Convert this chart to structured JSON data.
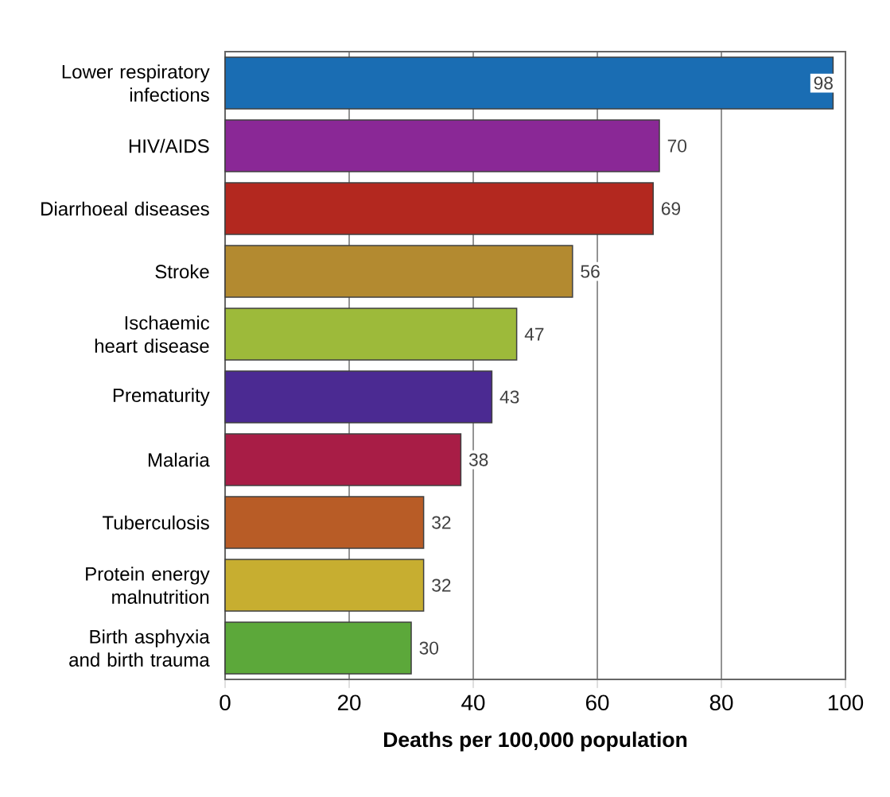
{
  "chart_data": {
    "type": "bar",
    "orientation": "horizontal",
    "categories": [
      "Lower respiratory infections",
      "HIV/AIDS",
      "Diarrhoeal diseases",
      "Stroke",
      "Ischaemic heart disease",
      "Prematurity",
      "Malaria",
      "Tuberculosis",
      "Protein energy malnutrition",
      "Birth asphyxia and birth trauma"
    ],
    "values": [
      98,
      70,
      69,
      56,
      47,
      43,
      38,
      32,
      32,
      30
    ],
    "colors": [
      "#1a6db3",
      "#8a2896",
      "#b3281f",
      "#b38a30",
      "#9dba3a",
      "#4b2a92",
      "#a81d46",
      "#b85c26",
      "#c7ae30",
      "#5ca83a"
    ],
    "xlim": [
      0,
      100
    ],
    "xticks": [
      0,
      20,
      40,
      60,
      80,
      100
    ],
    "xlabel": "Deaths per 100,000 population",
    "grid": "x",
    "data_labels": true
  }
}
